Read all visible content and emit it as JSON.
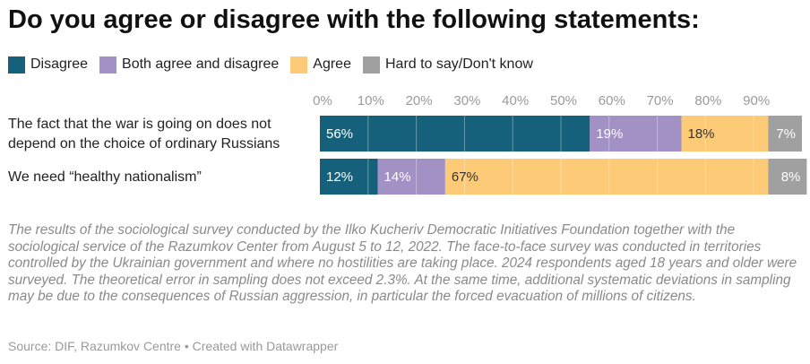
{
  "title": "Do you agree or disagree with the following statements:",
  "legend": [
    {
      "label": "Disagree",
      "color": "#15607a"
    },
    {
      "label": "Both agree and disagree",
      "color": "#a191c5"
    },
    {
      "label": "Agree",
      "color": "#fdcb78"
    },
    {
      "label": "Hard to say/Don't know",
      "color": "#a0a0a0"
    }
  ],
  "chart_data": {
    "type": "bar",
    "orientation": "horizontal",
    "stacked": true,
    "title": "Do you agree or disagree with the following statements:",
    "categories": [
      [
        "The fact that the war is going on does not",
        "depend on the choice of ordinary Russians"
      ],
      [
        "We need “healthy nationalism”"
      ]
    ],
    "series": [
      {
        "name": "Disagree",
        "color": "#15607a",
        "values": [
          56,
          12
        ],
        "labels": [
          "56%",
          "12%"
        ],
        "label_color": "#ffffff"
      },
      {
        "name": "Both agree and disagree",
        "color": "#a191c5",
        "values": [
          19,
          14
        ],
        "labels": [
          "19%",
          "14%"
        ],
        "label_color": "#ffffff"
      },
      {
        "name": "Agree",
        "color": "#fdcb78",
        "values": [
          18,
          67
        ],
        "labels": [
          "18%",
          "67%"
        ],
        "label_color": "#333333"
      },
      {
        "name": "Hard to say/Don't know",
        "color": "#a0a0a0",
        "values": [
          7,
          8
        ],
        "labels": [
          "7%",
          "8%"
        ],
        "label_color": "#ffffff"
      }
    ],
    "xlim": [
      0,
      100
    ],
    "xticks": [
      0,
      10,
      20,
      30,
      40,
      50,
      60,
      70,
      80,
      90
    ],
    "xtick_labels": [
      "0%",
      "10%",
      "20%",
      "30%",
      "40%",
      "50%",
      "60%",
      "70%",
      "80%",
      "90%"
    ],
    "grid": true,
    "legend_position": "top-left"
  },
  "note": "The results of the sociological survey conducted by the Ilko Kucheriv Democratic Initiatives Foundation together with the sociological service of the Razumkov Center from August 5 to 12, 2022. The face-to-face survey was conducted in territories controlled by the Ukrainian government and where no hostilities are taking place. 2024 respondents aged 18 years and older were surveyed. The theoretical error in sampling does not exceed 2.3%. At the same time, additional systematic deviations in sampling may be due to the consequences of Russian aggression, in particular the forced evacuation of millions of citizens.",
  "source": "Source: DIF, Razumkov Centre • Created with Datawrapper"
}
